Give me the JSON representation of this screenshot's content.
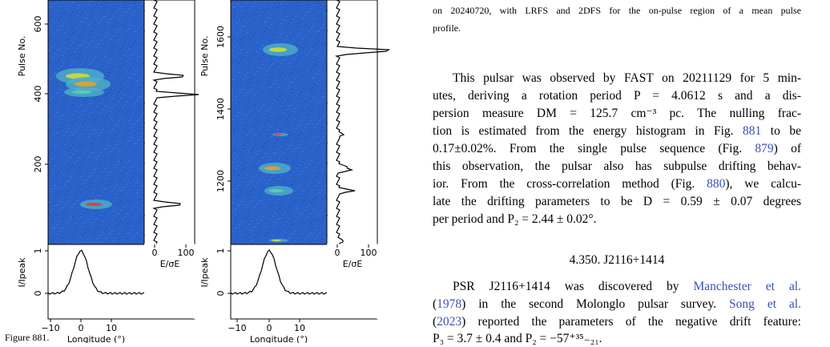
{
  "figure": {
    "panels": [
      {
        "y_label": "Pulse No.",
        "yticks": [
          "600",
          "400",
          "200"
        ],
        "profile_y_label": "I/Ipeak",
        "profile_yticks": [
          "1",
          "0"
        ],
        "xticks": [
          "−10",
          "0",
          "10"
        ],
        "x_label": "Longitude (°)",
        "energy_ticks": [
          "0",
          "100"
        ],
        "energy_label": "E/σE"
      },
      {
        "y_label": "Pulse No.",
        "yticks": [
          "1600",
          "1400",
          "1200"
        ],
        "profile_y_label": "I/Ipeak",
        "profile_yticks": [
          "1",
          "0"
        ],
        "xticks": [
          "−10",
          "0",
          "10"
        ],
        "x_label": "Longitude (°)",
        "energy_ticks": [
          "0",
          "100"
        ],
        "energy_label": "E/σE"
      }
    ],
    "caption_start": "Figure 881."
  },
  "caption_end": [
    "on 20240720, with LRFS and 2DFS for the on-pulse region of a mean pulse",
    "profile."
  ],
  "paragraphs": [
    {
      "lines": [
        [
          {
            "text": "This pulsar was observed by FAST on 20211129 for 5 min-"
          }
        ],
        [
          {
            "text": "utes, deriving a rotation period P = 4.0612 s and a dis-"
          }
        ],
        [
          {
            "text": "persion measure DM = 125.7 cm⁻³ pc. The nulling frac-"
          }
        ],
        [
          {
            "text": "tion is estimated from the energy histogram in Fig. "
          },
          {
            "text": "881",
            "link": true
          },
          {
            "text": " to be"
          }
        ],
        [
          {
            "text": "0.17±0.02%. From the single pulse sequence (Fig. "
          },
          {
            "text": "879",
            "link": true
          },
          {
            "text": ") of"
          }
        ],
        [
          {
            "text": "this observation, the pulsar also has subpulse drifting behav-"
          }
        ],
        [
          {
            "text": "ior. From the cross-correlation method (Fig. "
          },
          {
            "text": "880",
            "link": true
          },
          {
            "text": "), we calcu-"
          }
        ],
        [
          {
            "text": "late the drifting parameters to be D = 0.59 ± 0.07 degrees"
          }
        ],
        [
          {
            "text": "per period and P₂ = 2.44 ± 0.02°."
          }
        ]
      ]
    },
    {
      "heading": "4.350. J2116+1414",
      "lines": [
        [
          {
            "text": "PSR J2116+1414 was discovered by "
          },
          {
            "text": "Manchester et al.",
            "link": true
          }
        ],
        [
          {
            "text": "("
          },
          {
            "text": "1978",
            "link": true
          },
          {
            "text": ") in the second Molonglo pulsar survey. "
          },
          {
            "text": "Song et al.",
            "link": true
          }
        ],
        [
          {
            "text": "("
          },
          {
            "text": "2023",
            "link": true
          },
          {
            "text": ") reported the parameters of the negative drift feature:"
          }
        ],
        [
          {
            "text": "P₃ = 3.7 ± 0.4 and P₂ = −57⁺³⁵₋₂₁."
          }
        ]
      ]
    }
  ]
}
